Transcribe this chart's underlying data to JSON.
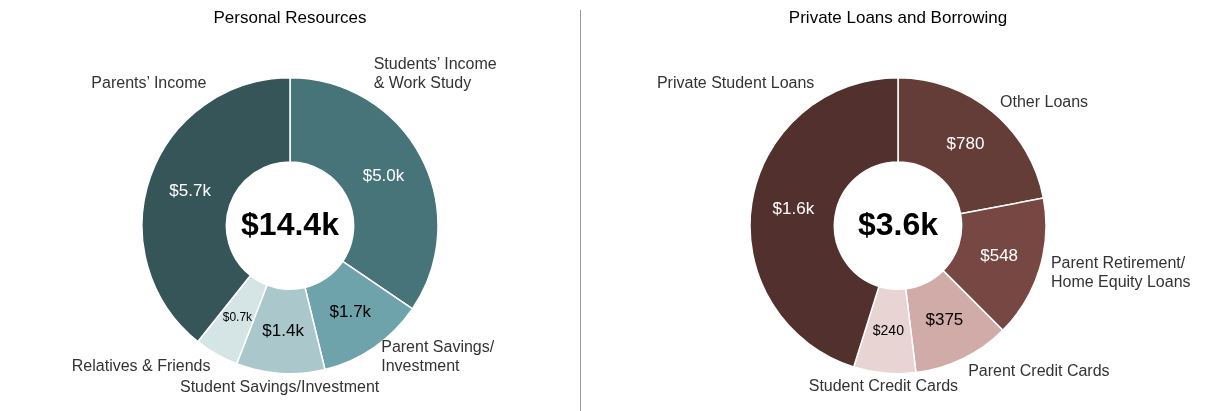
{
  "chart_data": [
    {
      "type": "donut",
      "title": "Personal Resources",
      "categories": [
        "Students’ Income\n& Work Study",
        "Parent Savings/\nInvestment",
        "Student Savings/Investment",
        "Relatives & Friends",
        "Parents’ Income"
      ],
      "values": [
        5.0,
        1.7,
        1.4,
        0.7,
        5.7
      ],
      "colors": [
        "#477479",
        "#6fa3ab",
        "#aac8cc",
        "#d5e5e6",
        "#365559"
      ],
      "value_labels": [
        "$5.0k",
        "$1.7k",
        "$1.4k",
        "$0.7k",
        "$5.7k"
      ],
      "annotations": [
        "$14.4k"
      ],
      "legend": false
    },
    {
      "type": "donut",
      "title": "Private Loans and Borrowing",
      "categories": [
        "Other Loans",
        "Parent Retirement/\nHome Equity Loans",
        "Parent Credit Cards",
        "Student Credit Cards",
        "Private Student Loans"
      ],
      "values": [
        780,
        548,
        375,
        240,
        1600
      ],
      "colors": [
        "#643c38",
        "#774843",
        "#d0aba8",
        "#e8d4d3",
        "#52302e"
      ],
      "value_labels": [
        "$780",
        "$548",
        "$375",
        "$240",
        "$1.6k"
      ],
      "annotations": [
        "$3.6k"
      ],
      "legend": false
    }
  ]
}
